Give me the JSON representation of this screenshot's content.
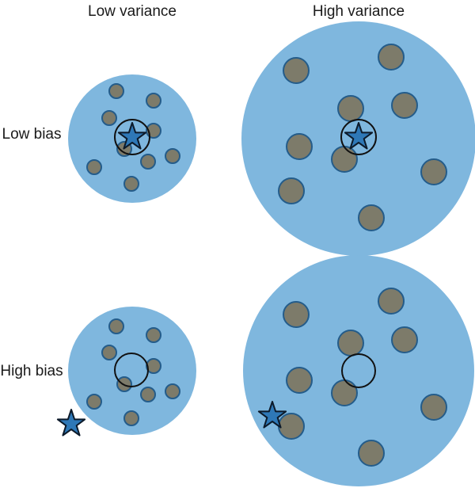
{
  "column_labels": {
    "low_variance": "Low variance",
    "high_variance": "High variance"
  },
  "row_labels": {
    "low_bias": "Low bias",
    "high_bias": "High bias"
  },
  "colors": {
    "panel_fill": "#7fb7de",
    "shot_fill": "#7d7b6a",
    "shot_stroke": "#245c8a",
    "star_fill": "#2e78b7"
  },
  "icons": {
    "target_marker": "star-icon"
  }
}
